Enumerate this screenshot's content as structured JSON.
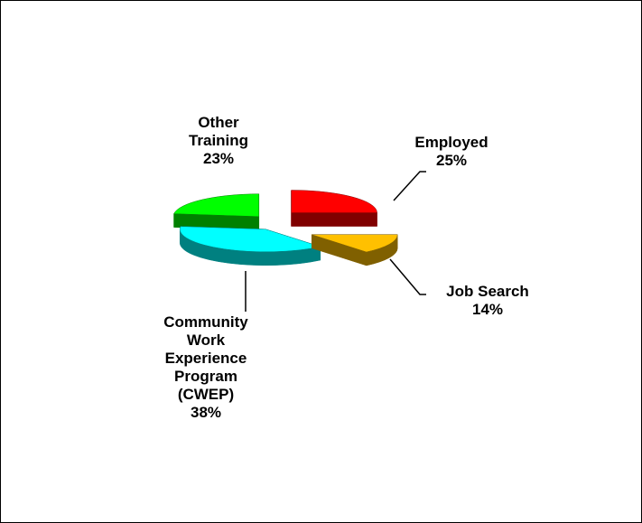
{
  "chart_data": {
    "type": "pie",
    "title": "",
    "slices": [
      {
        "lines": [
          "Employed",
          "25%"
        ],
        "value": 25,
        "color": "#ff0000",
        "side_color": "#800000"
      },
      {
        "lines": [
          "Job Search",
          "14%"
        ],
        "value": 14,
        "color": "#ffc000",
        "side_color": "#806000"
      },
      {
        "lines": [
          "Community",
          "Work",
          "Experience",
          "Program",
          "(CWEP)",
          "38%"
        ],
        "value": 38,
        "color": "#00ffff",
        "side_color": "#008080"
      },
      {
        "lines": [
          "Other",
          "Training",
          "23%"
        ],
        "value": 23,
        "color": "#00ff00",
        "side_color": "#008000"
      }
    ]
  }
}
